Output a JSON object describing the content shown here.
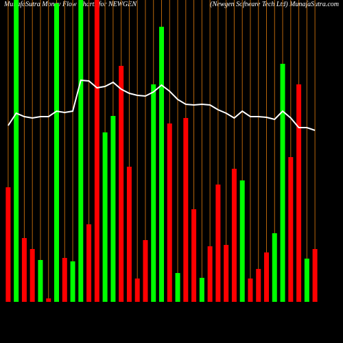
{
  "chart_data": {
    "type": "bar",
    "title": "MunafaSutra  Money Flow  Charts for NEWGEN",
    "subtitle": "(Newgen  Software   Tech Ltd) MunafaSutra.com",
    "ylim": [
      0,
      440
    ],
    "values": [
      167,
      440,
      93,
      77,
      61,
      5,
      435,
      64,
      59,
      440,
      113,
      440,
      247,
      271,
      344,
      197,
      34,
      90,
      317,
      401,
      260,
      42,
      268,
      135,
      35,
      81,
      171,
      83,
      194,
      177,
      34,
      48,
      72,
      100,
      347,
      211,
      317,
      63,
      77
    ],
    "colors": [
      "#ff0000",
      "#00ff00",
      "#ff0000",
      "#ff0000",
      "#00ff00",
      "#ff0000",
      "#00ff00",
      "#ff0000",
      "#00ff00",
      "#00ff00",
      "#ff0000",
      "#ff0000",
      "#00ff00",
      "#00ff00",
      "#ff0000",
      "#ff0000",
      "#ff0000",
      "#ff0000",
      "#00ff00",
      "#00ff00",
      "#ff0000",
      "#00ff00",
      "#ff0000",
      "#ff0000",
      "#00ff00",
      "#ff0000",
      "#ff0000",
      "#ff0000",
      "#ff0000",
      "#00ff00",
      "#ff0000",
      "#ff0000",
      "#ff0000",
      "#00ff00",
      "#00ff00",
      "#ff0000",
      "#ff0000",
      "#00ff00",
      "#ff0000"
    ],
    "line": [
      257,
      275,
      270,
      268,
      270,
      270,
      278,
      276,
      278,
      323,
      322,
      312,
      314,
      320,
      310,
      304,
      301,
      300,
      306,
      316,
      307,
      295,
      288,
      287,
      288,
      287,
      280,
      275,
      268,
      278,
      270,
      270,
      269,
      266,
      278,
      268,
      254,
      254,
      250
    ],
    "line_color": "#ffffff",
    "grid_color": "#b8660b"
  }
}
